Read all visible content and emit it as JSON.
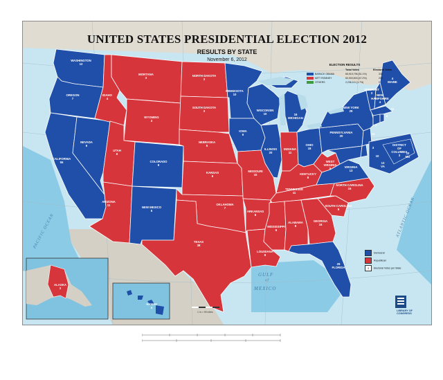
{
  "map": {
    "title": "UNITED STATES PRESIDENTIAL ELECTION 2012",
    "subtitle": "RESULTS BY STATE",
    "date": "November 6, 2012",
    "colors": {
      "democrat": "#1f4fa8",
      "republican": "#d6363b",
      "land_other": "#d4d0c5",
      "ocean": "#b9dceb",
      "ocean_deep": "#79bde0"
    }
  },
  "election_results": {
    "heading": "ELECTION RESULTS",
    "col_total": "Total Votes",
    "col_electoral": "Electoral Votes",
    "rows": [
      {
        "name": "BARACK OBAMA",
        "total": "65,915,796 (51.1%)",
        "electoral": "332",
        "color": "#1f4fa8"
      },
      {
        "name": "MITT ROMNEY",
        "total": "60,933,500 (47.2%)",
        "electoral": "206",
        "color": "#d6363b"
      },
      {
        "name": "OTHERS",
        "total": "2,236,111 (1.7%)",
        "electoral": "0",
        "color": "#3f9a3f"
      }
    ]
  },
  "key": {
    "democrat": "Democrat",
    "republican": "Republican",
    "ev_symbol": "3",
    "ev_label": "Electoral Votes per State"
  },
  "states": [
    {
      "id": "wa",
      "label": "WASHINGTON\n12"
    },
    {
      "id": "or",
      "label": "OREGON\n7"
    },
    {
      "id": "ca",
      "label": "CALIFORNIA\n55"
    },
    {
      "id": "nv",
      "label": "NEVADA\n6"
    },
    {
      "id": "id",
      "label": "IDAHO\n4"
    },
    {
      "id": "mt",
      "label": "MONTANA\n3"
    },
    {
      "id": "wy",
      "label": "WYOMING\n3"
    },
    {
      "id": "ut",
      "label": "UTAH\n6"
    },
    {
      "id": "az",
      "label": "ARIZONA\n11"
    },
    {
      "id": "co",
      "label": "COLORADO\n9"
    },
    {
      "id": "nm",
      "label": "NEW MEXICO\n5"
    },
    {
      "id": "nd",
      "label": "NORTH DAKOTA\n3"
    },
    {
      "id": "sd",
      "label": "SOUTH DAKOTA\n3"
    },
    {
      "id": "ne",
      "label": "NEBRASKA\n5"
    },
    {
      "id": "ks",
      "label": "KANSAS\n6"
    },
    {
      "id": "ok",
      "label": "OKLAHOMA\n7"
    },
    {
      "id": "tx",
      "label": "TEXAS\n38"
    },
    {
      "id": "mn",
      "label": "MINNESOTA\n10"
    },
    {
      "id": "ia",
      "label": "IOWA\n6"
    },
    {
      "id": "mo",
      "label": "MISSOURI\n10"
    },
    {
      "id": "ar",
      "label": "ARKANSAS\n6"
    },
    {
      "id": "la",
      "label": "LOUISIANA\n8"
    },
    {
      "id": "wi",
      "label": "WISCONSIN\n10"
    },
    {
      "id": "il",
      "label": "ILLINOIS\n20"
    },
    {
      "id": "mi",
      "label": "16\nMICHIGAN"
    },
    {
      "id": "in",
      "label": "INDIANA\n11"
    },
    {
      "id": "oh",
      "label": "OHIO\n18"
    },
    {
      "id": "ky",
      "label": "KENTUCKY\n8"
    },
    {
      "id": "tn",
      "label": "TENNESSEE\n11"
    },
    {
      "id": "ms",
      "label": "MISSISSIPPI\n6"
    },
    {
      "id": "al",
      "label": "ALABAMA\n9"
    },
    {
      "id": "ga",
      "label": "GEORGIA\n16"
    },
    {
      "id": "fl",
      "label": "29\nFLORIDA"
    },
    {
      "id": "sc",
      "label": "SOUTH CAROLINA\n9"
    },
    {
      "id": "nc",
      "label": "NORTH CAROLINA\n15"
    },
    {
      "id": "va",
      "label": "VIRGINIA\n13"
    },
    {
      "id": "wv",
      "label": "WEST\nVIRGINIA\n5"
    },
    {
      "id": "pa",
      "label": "PENNSYLVANIA\n20"
    },
    {
      "id": "ny",
      "label": "NEW YORK\n29"
    },
    {
      "id": "vt",
      "label": "VERMONT\n3"
    },
    {
      "id": "nh",
      "label": "NEW\nHAMPSHIRE\n4"
    },
    {
      "id": "me",
      "label": "4\nMAINE"
    },
    {
      "id": "ma",
      "label": "11"
    },
    {
      "id": "ri",
      "label": "4"
    },
    {
      "id": "ct",
      "label": "7"
    },
    {
      "id": "nj",
      "label": "14"
    },
    {
      "id": "de",
      "label": "3"
    },
    {
      "id": "md",
      "label": "10"
    },
    {
      "id": "dc",
      "label": "DISTRICT\nOF\nCOLUMBIA\n3"
    },
    {
      "id": "dc_md",
      "label": "10\nMD"
    },
    {
      "id": "dc_va",
      "label": "13\nVA"
    },
    {
      "id": "ak",
      "label": "ALASKA\n3"
    },
    {
      "id": "hi",
      "label": "HAWAII\n4"
    }
  ],
  "water": {
    "pacific": "PACIFIC OCEAN",
    "atlantic": "ATLANTIC OCEAN",
    "gulf_1": "GULF",
    "gulf_2": "of",
    "gulf_3": "MEXICO"
  },
  "logo": {
    "line1": "LIBRARY OF",
    "line2": "CONGRESS"
  },
  "scale_text": "1 in = 99 miles"
}
